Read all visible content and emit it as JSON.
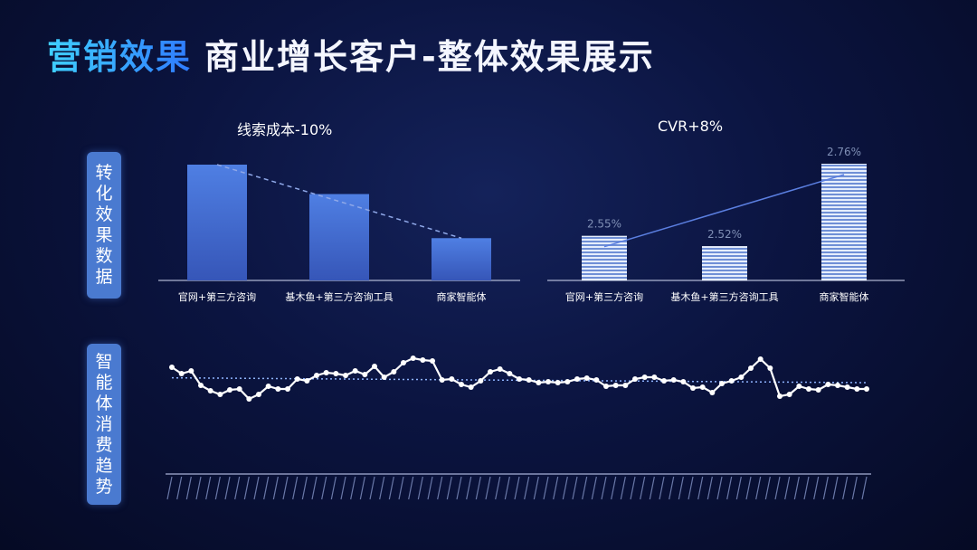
{
  "header": {
    "highlight": "营销效果",
    "title": "商业增长客户-整体效果展示"
  },
  "side_labels": {
    "conversion": [
      "转",
      "化",
      "效",
      "果",
      "数",
      "据"
    ],
    "consumption": [
      "智",
      "能",
      "体",
      "消",
      "费",
      "趋",
      "势"
    ]
  },
  "chart_data": [
    {
      "type": "bar",
      "title": "线索成本-10%",
      "categories": [
        "官网+第三方咨询",
        "基木鱼+第三方咨询工具",
        "商家智能体"
      ],
      "values": [
        126,
        94,
        46
      ],
      "trendline": true,
      "colors": {
        "bar": "#4a74d8"
      }
    },
    {
      "type": "bar",
      "title": "CVR+8%",
      "categories": [
        "官网+第三方咨询",
        "基木鱼+第三方咨询工具",
        "商家智能体"
      ],
      "values": [
        2.55,
        2.52,
        2.76
      ],
      "data_labels": [
        "2.55%",
        "2.52%",
        "2.76%"
      ],
      "trendline": true,
      "colors": {
        "bar": "#bcd0f2"
      }
    },
    {
      "type": "line",
      "values": [
        0.82,
        0.75,
        0.78,
        0.62,
        0.56,
        0.52,
        0.57,
        0.58,
        0.47,
        0.52,
        0.61,
        0.58,
        0.58,
        0.69,
        0.67,
        0.73,
        0.76,
        0.75,
        0.73,
        0.78,
        0.74,
        0.83,
        0.71,
        0.77,
        0.87,
        0.92,
        0.9,
        0.89,
        0.68,
        0.69,
        0.63,
        0.6,
        0.67,
        0.77,
        0.8,
        0.75,
        0.69,
        0.68,
        0.65,
        0.66,
        0.65,
        0.66,
        0.69,
        0.7,
        0.68,
        0.61,
        0.62,
        0.62,
        0.69,
        0.71,
        0.71,
        0.67,
        0.68,
        0.66,
        0.59,
        0.6,
        0.54,
        0.64,
        0.67,
        0.71,
        0.81,
        0.91,
        0.81,
        0.5,
        0.52,
        0.61,
        0.58,
        0.57,
        0.63,
        0.62,
        0.6,
        0.58,
        0.58
      ],
      "trendline": true,
      "colors": {
        "line": "#ffffff",
        "axis": "#cfd8ff"
      }
    }
  ]
}
